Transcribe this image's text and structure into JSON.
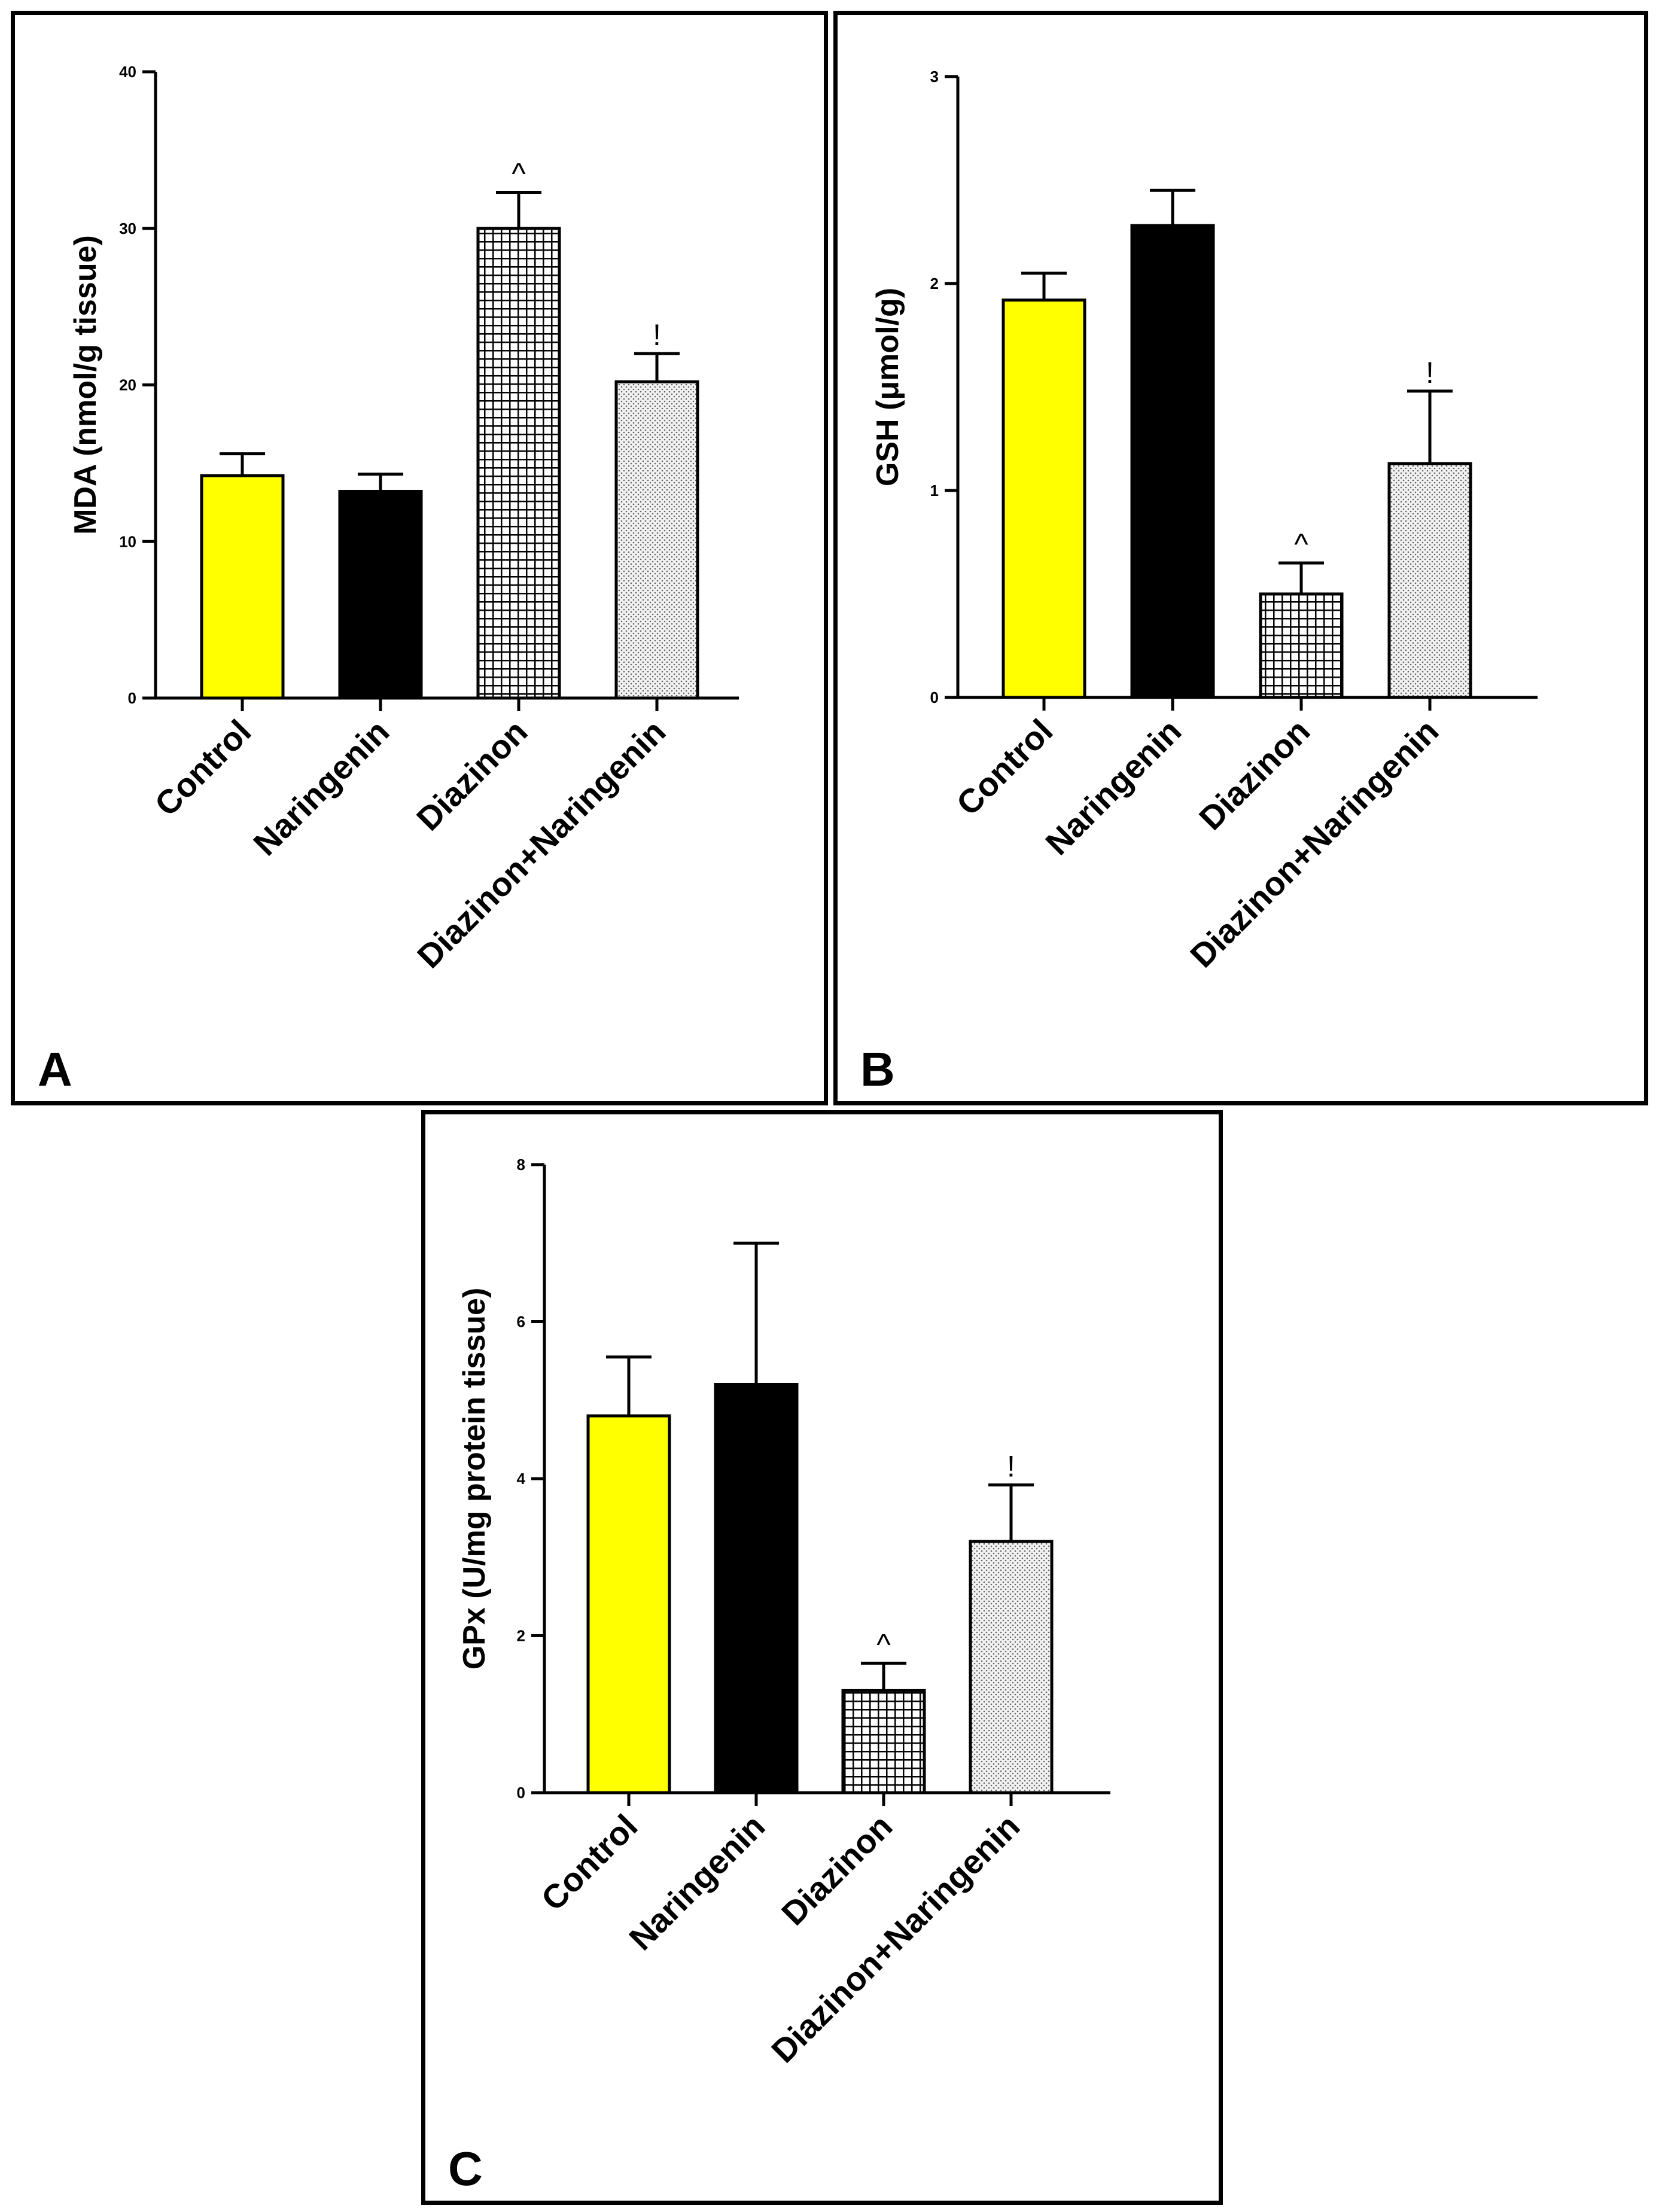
{
  "chart_data": [
    {
      "type": "bar",
      "panel_label": "A",
      "ylabel": "MDA (nmol/g tissue)",
      "categories": [
        "Control",
        "Naringenin",
        "Diazinon",
        "Diazinon+Naringenin"
      ],
      "values": [
        14.2,
        13.2,
        30.0,
        20.2
      ],
      "errors": [
        1.4,
        1.1,
        2.3,
        1.8
      ],
      "markers": [
        "",
        "",
        "^",
        "!"
      ],
      "patterns": [
        "yellow",
        "black",
        "grid",
        "dots"
      ],
      "ylim": [
        0,
        40
      ],
      "yticks": [
        0,
        10,
        20,
        30,
        40
      ],
      "grid": false
    },
    {
      "type": "bar",
      "panel_label": "B",
      "ylabel": "GSH (μmol/g)",
      "categories": [
        "Control",
        "Naringenin",
        "Diazinon",
        "Diazinon+Naringenin"
      ],
      "values": [
        1.92,
        2.28,
        0.5,
        1.13
      ],
      "errors": [
        0.13,
        0.17,
        0.15,
        0.35
      ],
      "markers": [
        "",
        "",
        "^",
        "!"
      ],
      "patterns": [
        "yellow",
        "black",
        "grid",
        "dots"
      ],
      "ylim": [
        0,
        3
      ],
      "yticks": [
        0,
        1,
        2,
        3
      ],
      "grid": false
    },
    {
      "type": "bar",
      "panel_label": "C",
      "ylabel": "GPx (U/mg protein tissue)",
      "categories": [
        "Control",
        "Naringenin",
        "Diazinon",
        "Diazinon+Naringenin"
      ],
      "values": [
        4.8,
        5.2,
        1.3,
        3.2
      ],
      "errors": [
        0.75,
        1.8,
        0.35,
        0.72
      ],
      "markers": [
        "",
        "",
        "^",
        "!"
      ],
      "patterns": [
        "yellow",
        "black",
        "grid",
        "dots"
      ],
      "ylim": [
        0,
        8
      ],
      "yticks": [
        0,
        2,
        4,
        6,
        8
      ],
      "grid": false
    }
  ],
  "colors": {
    "control_fill": "#ffff00",
    "naringenin_fill": "#000000",
    "outline": "#000000",
    "pattern_fill": "#ffffff"
  }
}
